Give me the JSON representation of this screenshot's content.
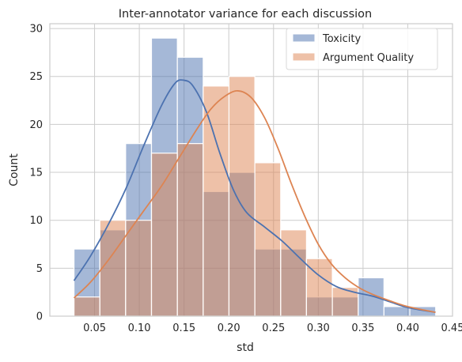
{
  "chart_data": {
    "type": "histogram",
    "title": "Inter-annotator variance for each discussion",
    "xlabel": "std",
    "ylabel": "Count",
    "xlim": [
      0.0,
      0.45
    ],
    "ylim": [
      0,
      30.5
    ],
    "xticks": [
      0.05,
      0.1,
      0.15,
      0.2,
      0.25,
      0.3,
      0.35,
      0.4,
      0.45
    ],
    "xtick_labels": [
      "0.05",
      "0.10",
      "0.15",
      "0.20",
      "0.25",
      "0.30",
      "0.35",
      "0.40",
      "0.45"
    ],
    "yticks": [
      0,
      5,
      10,
      15,
      20,
      25,
      30
    ],
    "ytick_labels": [
      "0",
      "5",
      "10",
      "15",
      "20",
      "25",
      "30"
    ],
    "grid": true,
    "legend_position": "top-right",
    "bin_edges": [
      0.027,
      0.0559,
      0.0847,
      0.1136,
      0.1425,
      0.1714,
      0.2002,
      0.2291,
      0.258,
      0.2868,
      0.3157,
      0.3446,
      0.3734,
      0.4023,
      0.4312
    ],
    "series": [
      {
        "name": "Toxicity",
        "color": "#4c72b0",
        "counts": [
          7,
          9,
          18,
          29,
          27,
          13,
          15,
          7,
          7,
          2,
          2,
          4,
          1,
          1
        ],
        "kde": [
          [
            0.027,
            3.7
          ],
          [
            0.045,
            6.2
          ],
          [
            0.065,
            9.5
          ],
          [
            0.085,
            13.3
          ],
          [
            0.105,
            17.8
          ],
          [
            0.125,
            22.0
          ],
          [
            0.14,
            24.3
          ],
          [
            0.15,
            24.6
          ],
          [
            0.16,
            24.0
          ],
          [
            0.175,
            21.3
          ],
          [
            0.19,
            17.0
          ],
          [
            0.205,
            13.2
          ],
          [
            0.22,
            10.8
          ],
          [
            0.24,
            9.3
          ],
          [
            0.26,
            7.8
          ],
          [
            0.28,
            6.0
          ],
          [
            0.3,
            4.3
          ],
          [
            0.32,
            3.1
          ],
          [
            0.34,
            2.5
          ],
          [
            0.36,
            2.1
          ],
          [
            0.38,
            1.5
          ],
          [
            0.4,
            0.9
          ],
          [
            0.431,
            0.4
          ]
        ]
      },
      {
        "name": "Argument Quality",
        "color": "#dd8452",
        "counts": [
          2,
          10,
          10,
          17,
          18,
          24,
          25,
          16,
          9,
          6,
          3,
          0,
          0,
          0
        ],
        "kde": [
          [
            0.027,
            1.9
          ],
          [
            0.045,
            3.5
          ],
          [
            0.065,
            5.8
          ],
          [
            0.085,
            8.4
          ],
          [
            0.105,
            11.0
          ],
          [
            0.125,
            13.6
          ],
          [
            0.145,
            16.6
          ],
          [
            0.165,
            19.6
          ],
          [
            0.18,
            21.6
          ],
          [
            0.195,
            22.9
          ],
          [
            0.21,
            23.5
          ],
          [
            0.225,
            22.8
          ],
          [
            0.24,
            20.7
          ],
          [
            0.255,
            17.5
          ],
          [
            0.27,
            13.8
          ],
          [
            0.285,
            10.4
          ],
          [
            0.3,
            7.5
          ],
          [
            0.315,
            5.4
          ],
          [
            0.33,
            4.0
          ],
          [
            0.345,
            3.0
          ],
          [
            0.36,
            2.3
          ],
          [
            0.38,
            1.6
          ],
          [
            0.4,
            1.0
          ],
          [
            0.431,
            0.4
          ]
        ]
      }
    ]
  }
}
